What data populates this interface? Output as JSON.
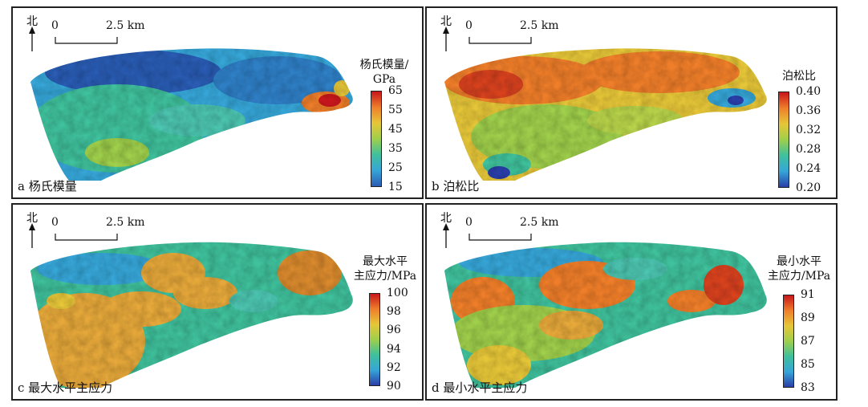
{
  "north_label": "北",
  "scale": {
    "zero": "0",
    "distance": "2.5 km"
  },
  "panels": [
    {
      "id": "a",
      "caption": "a 杨氏模量",
      "legend_title": [
        "杨氏模量/",
        "GPa"
      ],
      "ticks": [
        "65",
        "55",
        "45",
        "35",
        "25",
        "15"
      ],
      "colormap": [
        "#c8161c",
        "#ef7e2a",
        "#e6c638",
        "#9fcf4b",
        "#3fc09c",
        "#36a6d8",
        "#2a5cb4"
      ]
    },
    {
      "id": "b",
      "caption": "b 泊松比",
      "legend_title": [
        "泊松比"
      ],
      "ticks": [
        "0.40",
        "0.36",
        "0.32",
        "0.28",
        "0.24",
        "0.20"
      ],
      "colormap": [
        "#c8161c",
        "#ef7e2a",
        "#e6c638",
        "#9fcf4b",
        "#3fc09c",
        "#36a6d8",
        "#2a3ea8"
      ]
    },
    {
      "id": "c",
      "caption": "c 最大水平主应力",
      "legend_title": [
        "最大水平",
        "主应力/MPa"
      ],
      "ticks": [
        "100",
        "98",
        "96",
        "94",
        "92",
        "90"
      ],
      "colormap": [
        "#c8161c",
        "#ef7e2a",
        "#e6c638",
        "#9fcf4b",
        "#3fc09c",
        "#36a6d8",
        "#2a3ea8"
      ]
    },
    {
      "id": "d",
      "caption": "d 最小水平主应力",
      "legend_title": [
        "最小水平",
        "主应力/MPa"
      ],
      "ticks": [
        "91",
        "89",
        "87",
        "85",
        "83"
      ],
      "colormap": [
        "#c8161c",
        "#ef7e2a",
        "#e6c638",
        "#9fcf4b",
        "#3fc09c",
        "#36a6d8",
        "#2a3ea8"
      ]
    }
  ]
}
